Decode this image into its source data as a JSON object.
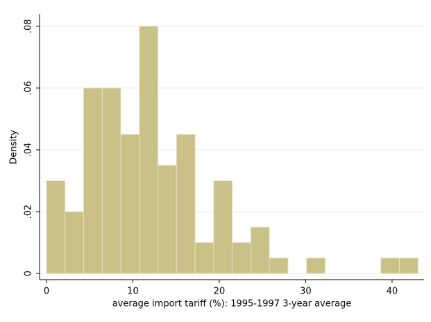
{
  "chart_data": {
    "type": "histogram",
    "xlabel": "average import tariff (%): 1995-1997 3-year average",
    "ylabel": "Density",
    "bins": [
      0,
      2.15,
      4.3,
      6.45,
      8.6,
      10.75,
      12.9,
      15.05,
      17.2,
      19.35,
      21.5,
      23.65,
      25.8,
      27.95,
      30.1,
      32.25,
      34.4,
      36.55,
      38.7,
      40.85,
      43
    ],
    "values": [
      0.03,
      0.02,
      0.06,
      0.06,
      0.045,
      0.08,
      0.035,
      0.045,
      0.01,
      0.03,
      0.01,
      0.015,
      0.005,
      0,
      0.005,
      0,
      0,
      0,
      0.005,
      0.005
    ],
    "color": "#c9c188",
    "xlim": [
      -0.8,
      43.7
    ],
    "ylim": [
      -0.002,
      0.084
    ],
    "xticks": [
      0,
      10,
      20,
      30,
      40
    ],
    "yticks": [
      0,
      {
        "value": 0.02,
        "label": ".02"
      },
      {
        "value": 0.04,
        "label": ".04"
      },
      {
        "value": 0.06,
        "label": ".06"
      },
      {
        "value": 0.08,
        "label": ".08"
      }
    ],
    "grid": true
  }
}
